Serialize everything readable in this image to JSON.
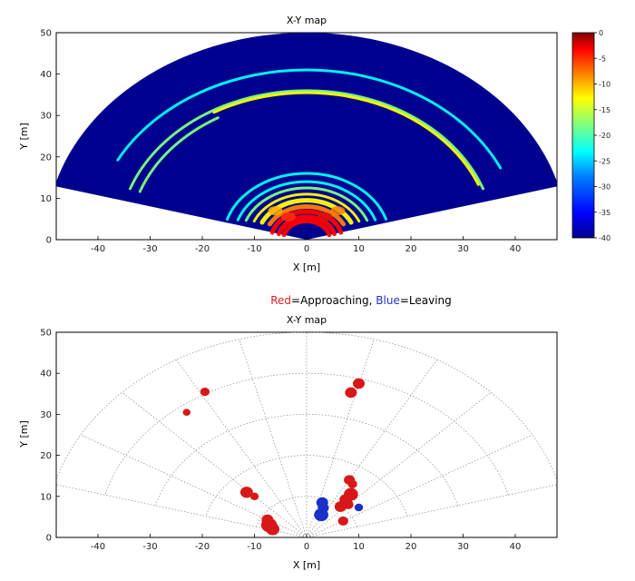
{
  "chart_data": [
    {
      "type": "heatmap",
      "title": "X-Y map",
      "xlabel": "X [m]",
      "ylabel": "Y [m]",
      "xlim": [
        -48,
        48
      ],
      "ylim": [
        0,
        50
      ],
      "x_ticks": [
        -40,
        -30,
        -20,
        -10,
        0,
        10,
        20,
        30,
        40
      ],
      "y_ticks": [
        0,
        10,
        20,
        30,
        40,
        50
      ],
      "fov_deg": [
        -75,
        75
      ],
      "max_range": 50,
      "colorbar": {
        "ticks": [
          0,
          -5,
          -10,
          -15,
          -20,
          -25,
          -30,
          -35,
          -40
        ],
        "range": [
          -40,
          0
        ],
        "colors": [
          "#00008f",
          "#0000ff",
          "#0080ff",
          "#00ffff",
          "#80ff80",
          "#ffff00",
          "#ff8000",
          "#ff0000",
          "#800000"
        ]
      },
      "background_color": "#00008f",
      "arcs": [
        {
          "r": 41,
          "from_deg": 25,
          "to_deg": 152,
          "value": -25
        },
        {
          "r": 36,
          "from_deg": 20,
          "to_deg": 160,
          "value": -20
        },
        {
          "r": 35.5,
          "from_deg": 22,
          "to_deg": 120,
          "value": -15
        },
        {
          "r": 34,
          "from_deg": 120,
          "to_deg": 160,
          "value": -22
        },
        {
          "r": 16,
          "from_deg": 18,
          "to_deg": 162,
          "value": -27
        },
        {
          "r": 14,
          "from_deg": 20,
          "to_deg": 160,
          "value": -24
        },
        {
          "r": 12.5,
          "from_deg": 22,
          "to_deg": 158,
          "value": -20
        },
        {
          "r": 11,
          "from_deg": 24,
          "to_deg": 156,
          "value": -17
        },
        {
          "r": 9.5,
          "from_deg": 26,
          "to_deg": 154,
          "value": -14
        },
        {
          "r": 8,
          "from_deg": 28,
          "to_deg": 152,
          "value": -8
        },
        {
          "r": 6.8,
          "from_deg": 15,
          "to_deg": 165,
          "value": -6
        },
        {
          "r": 5.5,
          "from_deg": 15,
          "to_deg": 165,
          "value": -3
        },
        {
          "r": 4.5,
          "from_deg": 15,
          "to_deg": 165,
          "value": -5
        }
      ]
    },
    {
      "type": "scatter",
      "title": "X-Y map",
      "xlabel": "X [m]",
      "ylabel": "Y [m]",
      "xlim": [
        -48,
        48
      ],
      "ylim": [
        0,
        50
      ],
      "x_ticks": [
        -40,
        -30,
        -20,
        -10,
        0,
        10,
        20,
        30,
        40
      ],
      "y_ticks": [
        0,
        10,
        20,
        30,
        40,
        50
      ],
      "polar_grid": {
        "radii": [
          10,
          20,
          30,
          40,
          50
        ],
        "angles_deg": [
          15,
          30,
          45,
          60,
          75,
          90,
          105,
          120,
          135,
          150,
          165
        ]
      },
      "legend_parts": [
        {
          "text": "Red",
          "color": "#e02020"
        },
        {
          "text": "=Approaching, ",
          "color": "#000000"
        },
        {
          "text": "Blue",
          "color": "#2030d0"
        },
        {
          "text": "=Leaving",
          "color": "#000000"
        }
      ],
      "series": [
        {
          "color": "#d81818",
          "points": [
            {
              "x": -19.5,
              "y": 35.5,
              "s": 0.7
            },
            {
              "x": -23,
              "y": 30.5,
              "s": 0.5
            },
            {
              "x": -11.5,
              "y": 11,
              "s": 1.1
            },
            {
              "x": -10,
              "y": 10,
              "s": 0.6
            },
            {
              "x": -7.5,
              "y": 4.3,
              "s": 1.0
            },
            {
              "x": -7.2,
              "y": 3,
              "s": 1.5
            },
            {
              "x": -6.5,
              "y": 2,
              "s": 1.2
            },
            {
              "x": 8.5,
              "y": 35.3,
              "s": 1.0
            },
            {
              "x": 10,
              "y": 37.5,
              "s": 1.0
            },
            {
              "x": 8.2,
              "y": 14,
              "s": 0.9
            },
            {
              "x": 8.8,
              "y": 13,
              "s": 0.7
            },
            {
              "x": 8.5,
              "y": 10.5,
              "s": 1.3
            },
            {
              "x": 7.5,
              "y": 9.2,
              "s": 1.1
            },
            {
              "x": 6.5,
              "y": 7.5,
              "s": 1.0
            },
            {
              "x": 8,
              "y": 8,
              "s": 0.8
            },
            {
              "x": 7,
              "y": 4,
              "s": 0.8
            },
            {
              "x": 3.3,
              "y": 7.7,
              "s": 0.5
            }
          ]
        },
        {
          "color": "#1a30c8",
          "points": [
            {
              "x": 3,
              "y": 8.5,
              "s": 1.0
            },
            {
              "x": 3.2,
              "y": 7.2,
              "s": 0.9
            },
            {
              "x": 2.8,
              "y": 5.5,
              "s": 1.3
            },
            {
              "x": 10,
              "y": 7.3,
              "s": 0.6
            }
          ]
        }
      ]
    }
  ]
}
